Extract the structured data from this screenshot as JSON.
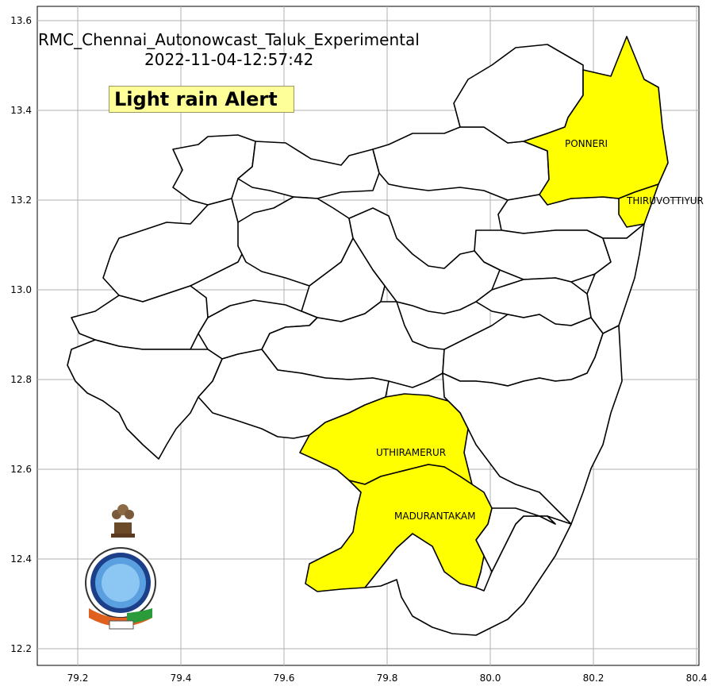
{
  "title": "RMC_Chennai_Autonowcast_Taluk_Experimental",
  "timestamp": "2022-11-04-12:57:42",
  "alert_text": "Light rain Alert",
  "colors": {
    "alert_fill": "#ffff00",
    "alert_box": "#ffff99",
    "gridline": "#b0b0b0",
    "border": "#000000"
  },
  "axes": {
    "x_range": [
      79.12,
      80.41
    ],
    "y_range": [
      12.17,
      13.63
    ],
    "x_ticks": [
      "79.2",
      "79.4",
      "79.6",
      "79.8",
      "80.0",
      "80.2",
      "80.4"
    ],
    "y_ticks": [
      "12.2",
      "12.4",
      "12.6",
      "12.8",
      "13.0",
      "13.2",
      "13.4",
      "13.6"
    ],
    "grid": true
  },
  "alert_taluks": [
    {
      "name": "PONNERI",
      "lon": 80.15,
      "lat": 13.32
    },
    {
      "name": "THIRUVOTTIYUR",
      "lon": 80.27,
      "lat": 13.19
    },
    {
      "name": "UTHIRAMERUR",
      "lon": 79.78,
      "lat": 12.63
    },
    {
      "name": "MADURANTAKAM",
      "lon": 79.82,
      "lat": 12.49
    }
  ],
  "emblem": "imd-logo-icon"
}
